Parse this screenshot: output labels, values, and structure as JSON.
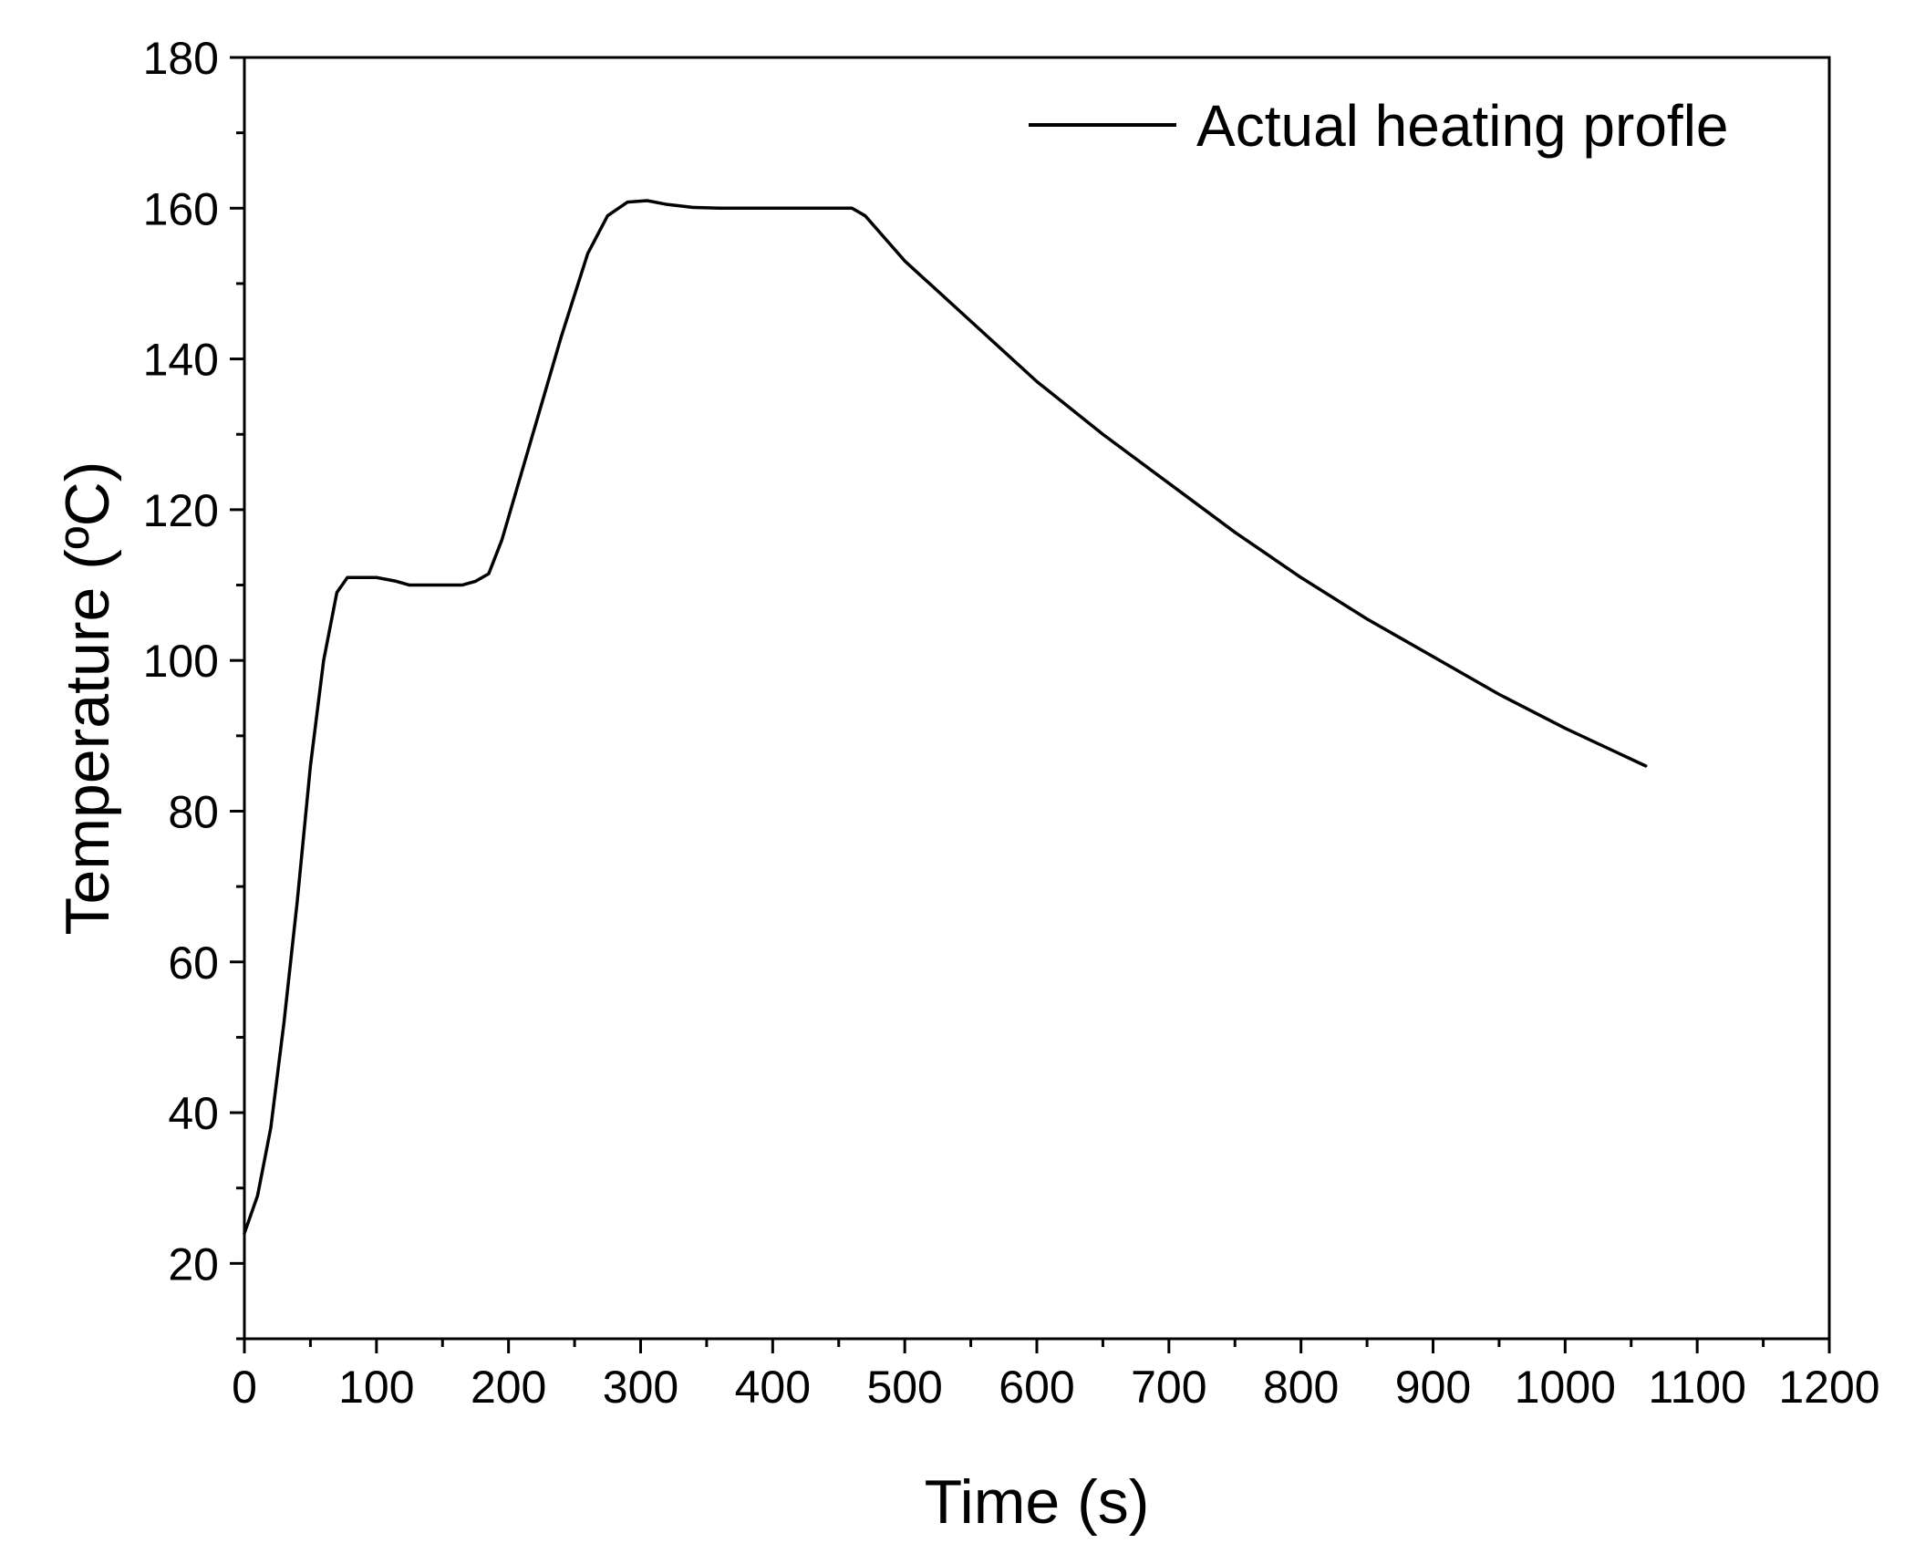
{
  "chart_data": {
    "type": "line",
    "title": "",
    "xlabel": "Time (s)",
    "ylabel": "Temperature (ºC)",
    "xlim": [
      0,
      1200
    ],
    "ylim": [
      10,
      180
    ],
    "xticks": [
      0,
      100,
      200,
      300,
      400,
      500,
      600,
      700,
      800,
      900,
      1000,
      1100,
      1200
    ],
    "yticks": [
      20,
      40,
      60,
      80,
      100,
      120,
      140,
      160,
      180
    ],
    "xtick_labels": [
      "0",
      "100",
      "200",
      "300",
      "400",
      "500",
      "600",
      "700",
      "800",
      "900",
      "1000",
      "1100",
      "1200"
    ],
    "ytick_labels": [
      "20",
      "40",
      "60",
      "80",
      "100",
      "120",
      "140",
      "160",
      "180"
    ],
    "grid": false,
    "legend_position": "top-right",
    "series": [
      {
        "name": "Actual heating profle",
        "color": "#000000",
        "x": [
          0,
          10,
          20,
          30,
          40,
          50,
          60,
          70,
          78,
          85,
          100,
          115,
          125,
          135,
          150,
          165,
          175,
          185,
          195,
          205,
          220,
          240,
          260,
          275,
          290,
          305,
          320,
          340,
          360,
          400,
          440,
          460,
          470,
          500,
          550,
          600,
          650,
          700,
          750,
          800,
          850,
          900,
          950,
          1000,
          1061
        ],
        "y": [
          24,
          29,
          38,
          52,
          68,
          86,
          100,
          109,
          111,
          111,
          111,
          110.5,
          110,
          110,
          110,
          110,
          110.5,
          111.5,
          116,
          122,
          131,
          143,
          154,
          159,
          160.8,
          161,
          160.5,
          160.1,
          160,
          160,
          160,
          160,
          159,
          153,
          145,
          137,
          130,
          123.5,
          117,
          111,
          105.5,
          100.5,
          95.5,
          91,
          86
        ]
      }
    ]
  }
}
